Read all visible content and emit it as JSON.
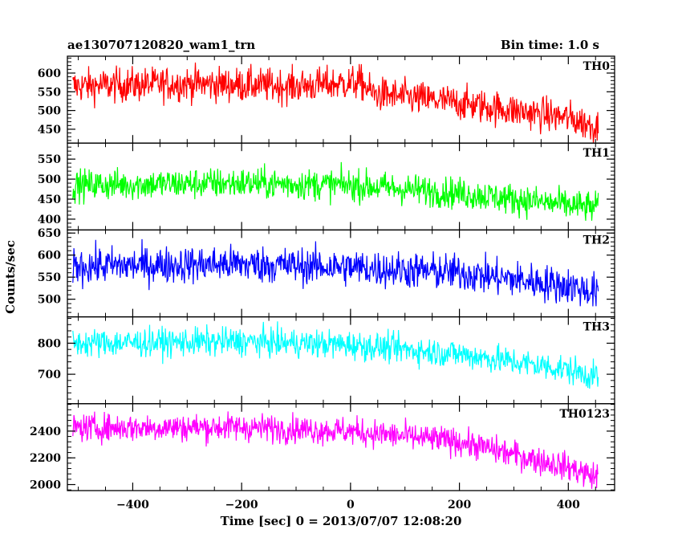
{
  "chart_data": {
    "type": "line",
    "title": "ae130707120820_wam1_trn",
    "subtitle": "Bin time: 1.0 s",
    "xlabel": "Time [sec] 0 = 2013/07/07 12:08:20",
    "ylabel": "Counts/sec",
    "xlim": [
      -520,
      485
    ],
    "x_ticks": [
      -400,
      -200,
      0,
      200,
      400
    ],
    "x_tick_labels": [
      "−400",
      "−200",
      "0",
      "200",
      "400"
    ],
    "grid": false,
    "sampling": {
      "x_start": -510,
      "x_end": 455,
      "step": 1
    },
    "panels": [
      {
        "name": "TH0",
        "color": "#ff0000",
        "ylim": [
          413,
          645
        ],
        "yticks": [
          450,
          500,
          550,
          600
        ],
        "trend": [
          [
            -510,
            565
          ],
          [
            -300,
            572
          ],
          [
            -100,
            565
          ],
          [
            20,
            575
          ],
          [
            40,
            545
          ],
          [
            200,
            520
          ],
          [
            400,
            480
          ],
          [
            455,
            455
          ]
        ],
        "noise": 33
      },
      {
        "name": "TH1",
        "color": "#00ff00",
        "ylim": [
          373,
          590
        ],
        "yticks": [
          400,
          450,
          500,
          550
        ],
        "trend": [
          [
            -510,
            485
          ],
          [
            -200,
            490
          ],
          [
            0,
            485
          ],
          [
            200,
            465
          ],
          [
            400,
            435
          ],
          [
            455,
            428
          ]
        ],
        "noise": 28
      },
      {
        "name": "TH2",
        "color": "#0000ff",
        "ylim": [
          460,
          657
        ],
        "yticks": [
          500,
          550,
          600,
          650
        ],
        "trend": [
          [
            -510,
            575
          ],
          [
            -200,
            580
          ],
          [
            0,
            572
          ],
          [
            200,
            560
          ],
          [
            400,
            530
          ],
          [
            455,
            515
          ]
        ],
        "noise": 30
      },
      {
        "name": "TH3",
        "color": "#00ffff",
        "ylim": [
          605,
          885
        ],
        "yticks": [
          700,
          800
        ],
        "trend": [
          [
            -510,
            800
          ],
          [
            -200,
            805
          ],
          [
            0,
            795
          ],
          [
            200,
            765
          ],
          [
            400,
            715
          ],
          [
            455,
            690
          ]
        ],
        "noise": 33
      },
      {
        "name": "TH0123",
        "color": "#ff00ff",
        "ylim": [
          1955,
          2605
        ],
        "yticks": [
          2000,
          2200,
          2400
        ],
        "trend": [
          [
            -510,
            2425
          ],
          [
            -200,
            2430
          ],
          [
            0,
            2400
          ],
          [
            200,
            2320
          ],
          [
            400,
            2130
          ],
          [
            455,
            2050
          ]
        ],
        "noise": 75
      }
    ]
  }
}
